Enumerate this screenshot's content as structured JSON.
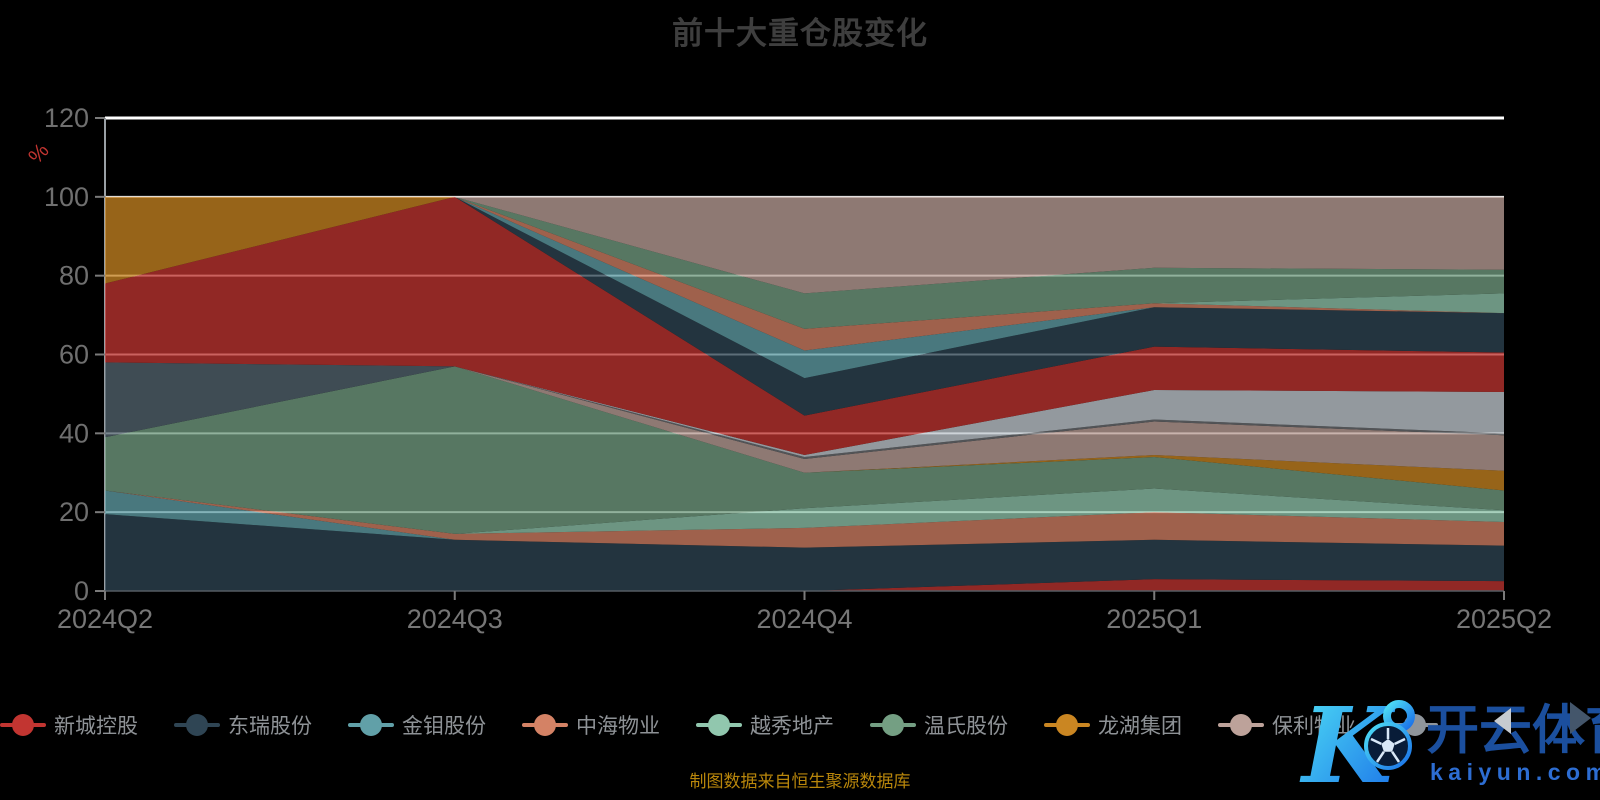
{
  "title": "前十大重仓股变化",
  "source_note": "制图数据来自恒生聚源数据库",
  "watermark": {
    "monogram": "K",
    "brand": "开云体育",
    "domain": "kaiyun.com",
    "ball_icon": "soccer-ball",
    "cyan": "#4fe0f5",
    "blue": "#1a70e8",
    "brand_blue": "#1b4f9e",
    "domain_blue": "#2d6dd2"
  },
  "colors": {
    "background": "#000000",
    "title": "#3e3e3e",
    "grid_line": "#ffffff",
    "axis_line": "#9aa0a5",
    "tick": "#7a7a7a",
    "y_label": "#6f6f6f",
    "x_label": "#767676",
    "percent_label": "#c23531",
    "legend_label": "#8e9296",
    "source_note": "#b8860b",
    "arrow_prev": "#c6cbd0",
    "arrow_next": "#44566b"
  },
  "legend": {
    "items": [
      {
        "label": "新城控股",
        "color": "#c23531"
      },
      {
        "label": "东瑞股份",
        "color": "#2f4554"
      },
      {
        "label": "金钼股份",
        "color": "#61a0a8"
      },
      {
        "label": "中海物业",
        "color": "#d48265"
      },
      {
        "label": "越秀地产",
        "color": "#91c7ae"
      },
      {
        "label": "温氏股份",
        "color": "#749f83"
      },
      {
        "label": "龙湖集团",
        "color": "#ca8622"
      },
      {
        "label": "保利物业",
        "color": "#bda29a"
      },
      {
        "label": "",
        "color": "#8f959b"
      }
    ],
    "scroll_prev_icon": "left-triangle",
    "scroll_next_icon": "right-triangle"
  },
  "chart_data": {
    "type": "area",
    "stacked": true,
    "title": "前十大重仓股变化",
    "xlabel": "",
    "ylabel": "%",
    "x": [
      "2024Q2",
      "2024Q3",
      "2024Q4",
      "2025Q1",
      "2025Q2"
    ],
    "y_ticks": [
      0,
      20,
      40,
      60,
      80,
      100,
      120
    ],
    "ylim": [
      0,
      120
    ],
    "grid": true,
    "legend_position": "bottom",
    "area_opacity": 0.75,
    "series": [
      {
        "name": "新城控股",
        "color": "#c23531",
        "values": [
          0,
          0,
          0,
          3,
          2.5
        ]
      },
      {
        "name": "东瑞股份",
        "color": "#2f4554",
        "values": [
          19.5,
          13,
          11,
          10,
          9
        ]
      },
      {
        "name": "金钼股份",
        "color": "#61a0a8",
        "values": [
          6,
          0,
          0,
          0,
          0
        ]
      },
      {
        "name": "中海物业",
        "color": "#d48265",
        "values": [
          0,
          1.5,
          5,
          7,
          6
        ]
      },
      {
        "name": "越秀地产",
        "color": "#91c7ae",
        "values": [
          0,
          0,
          5,
          6,
          3
        ]
      },
      {
        "name": "温氏股份",
        "color": "#749f83",
        "values": [
          13.5,
          42.5,
          9,
          8,
          5
        ]
      },
      {
        "name": "龙湖集团",
        "color": "#ca8622",
        "values": [
          0,
          0,
          0,
          0.5,
          5
        ]
      },
      {
        "name": "保利物业",
        "color": "#bda29a",
        "values": [
          0,
          0,
          3.5,
          8.5,
          9
        ]
      },
      {
        "name": "",
        "color": "#6e7074",
        "values": [
          0,
          0,
          0.5,
          0.5,
          0.5
        ]
      },
      {
        "name": "",
        "color": "#546570",
        "values": [
          19,
          0,
          0,
          0,
          0
        ]
      },
      {
        "name": "",
        "color": "#c4ccd3",
        "values": [
          0,
          0,
          0.5,
          7.5,
          10.5
        ]
      },
      {
        "name": "",
        "color": "#c23531",
        "values": [
          20,
          43,
          10,
          11,
          10
        ]
      },
      {
        "name": "",
        "color": "#2f4554",
        "values": [
          0,
          0,
          9.5,
          10,
          10
        ]
      },
      {
        "name": "",
        "color": "#61a0a8",
        "values": [
          0,
          0,
          7,
          0,
          0
        ]
      },
      {
        "name": "",
        "color": "#d48265",
        "values": [
          0,
          0,
          5.5,
          1,
          0
        ]
      },
      {
        "name": "",
        "color": "#91c7ae",
        "values": [
          0,
          0,
          0,
          0,
          5
        ]
      },
      {
        "name": "",
        "color": "#749f83",
        "values": [
          0,
          0,
          9,
          9,
          6
        ]
      },
      {
        "name": "",
        "color": "#ca8622",
        "values": [
          22,
          0,
          0,
          0,
          0
        ]
      },
      {
        "name": "",
        "color": "#bda29a",
        "values": [
          0,
          0,
          24.5,
          18,
          18.5
        ]
      }
    ]
  }
}
